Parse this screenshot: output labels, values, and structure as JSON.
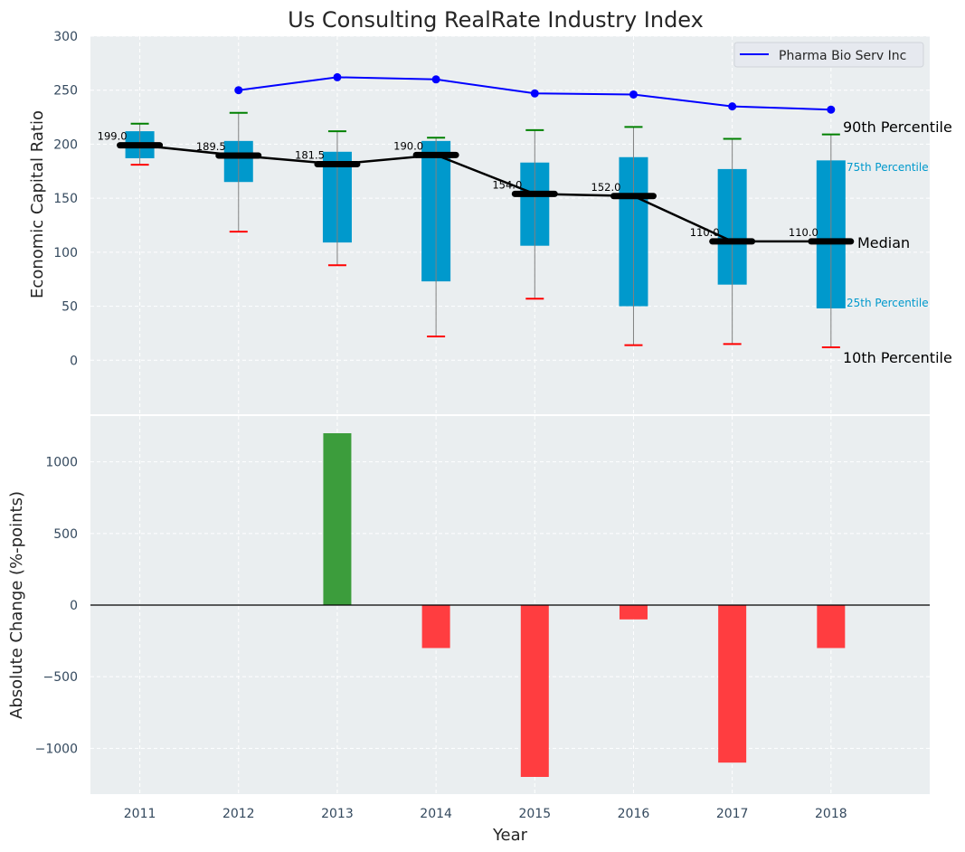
{
  "chart_data": [
    {
      "type": "box-summary",
      "title": "Us Consulting RealRate Industry Index",
      "xlabel": "",
      "ylabel": "Economic Capital Ratio",
      "categories": [
        "2011",
        "2012",
        "2013",
        "2014",
        "2015",
        "2016",
        "2017",
        "2018"
      ],
      "xlim": [
        2010.5,
        2019.0
      ],
      "ylim": [
        -50,
        300
      ],
      "yticks": [
        0,
        50,
        100,
        150,
        200,
        250,
        300
      ],
      "grid": true,
      "percentiles": {
        "p10": [
          181,
          119,
          88,
          22,
          57,
          14,
          15,
          12
        ],
        "p25": [
          187,
          165,
          109,
          73,
          106,
          50,
          70,
          48
        ],
        "median": [
          199.0,
          189.5,
          181.5,
          190.0,
          154.0,
          152.0,
          110.0,
          110.0
        ],
        "p75": [
          212,
          203,
          193,
          203,
          183,
          188,
          177,
          185
        ],
        "p90": [
          219,
          229,
          212,
          206,
          213,
          216,
          205,
          209
        ]
      },
      "median_labels": [
        "199.0",
        "189.5",
        "181.5",
        "190.0",
        "154.0",
        "152.0",
        "110.0",
        "110.0"
      ],
      "series": [
        {
          "name": "Pharma Bio Serv Inc",
          "color": "#0000ff",
          "x": [
            "2012",
            "2013",
            "2014",
            "2015",
            "2016",
            "2017",
            "2018"
          ],
          "values": [
            250,
            262,
            260,
            247,
            246,
            235,
            232
          ]
        }
      ],
      "legend": {
        "position": "top-right",
        "entries": [
          "Pharma Bio Serv Inc"
        ]
      },
      "annotations": {
        "p90": "90th Percentile",
        "p75": "75th Percentile",
        "median": "Median",
        "p25": "25th Percentile",
        "p10": "10th Percentile"
      },
      "colors": {
        "box": "#0099cc",
        "median": "#000000",
        "p90_cap": "#008000",
        "p10_cap": "#ff0000",
        "whisker": "#808080",
        "p75_label": "#0099cc",
        "p25_label": "#0099cc",
        "panel_bg": "#eaeef0",
        "tick_text": "#34495e"
      }
    },
    {
      "type": "bar",
      "title": "",
      "xlabel": "Year",
      "ylabel": "Absolute Change (%-points)",
      "categories": [
        "2011",
        "2012",
        "2013",
        "2014",
        "2015",
        "2016",
        "2017",
        "2018"
      ],
      "values": [
        null,
        null,
        1200,
        -300,
        -1200,
        -100,
        -1100,
        -300
      ],
      "xlim": [
        2010.5,
        2019.0
      ],
      "ylim": [
        -1320,
        1320
      ],
      "yticks": [
        -1000,
        -500,
        0,
        500,
        1000
      ],
      "ytick_labels": [
        "−1000",
        "−500",
        "0",
        "500",
        "1000"
      ],
      "grid": true,
      "colors": {
        "positive": "#3c9d3c",
        "negative": "#ff3d40",
        "zero_line": "#000000"
      }
    }
  ]
}
